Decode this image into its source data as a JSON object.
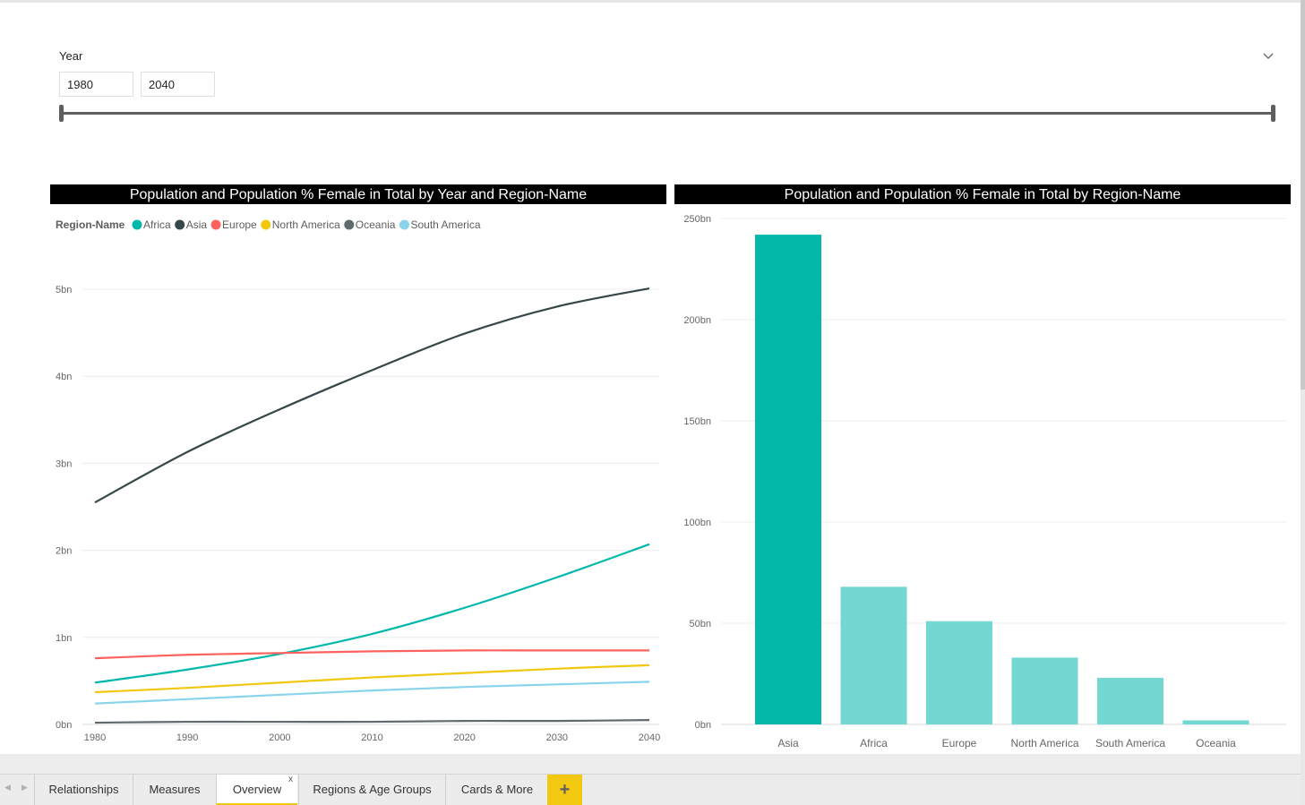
{
  "slicer": {
    "title": "Year",
    "start_value": "1980",
    "end_value": "2040"
  },
  "line_visual": {
    "title": "Population and Population % Female in Total by Year and Region-Name",
    "legend_title": "Region-Name"
  },
  "bar_visual": {
    "title": "Population and Population % Female in Total by Region-Name"
  },
  "tabs": {
    "relationships": "Relationships",
    "measures": "Measures",
    "overview": "Overview",
    "overview_close": "x",
    "regions": "Regions & Age Groups",
    "cards": "Cards & More",
    "add": "+"
  },
  "icons": {
    "chevron": "chevron-down-icon",
    "prev": "scroll-left-icon",
    "next": "scroll-right-icon"
  },
  "chart_data": [
    {
      "type": "line",
      "title": "Population and Population % Female in Total by Year and Region-Name",
      "legend_title": "Region-Name",
      "legend_position": "top-left",
      "x": [
        1980,
        1990,
        2000,
        2010,
        2020,
        2030,
        2040
      ],
      "x_ticks": [
        "1980",
        "1990",
        "2000",
        "2010",
        "2020",
        "2030",
        "2040"
      ],
      "y_ticks": [
        "0bn",
        "1bn",
        "2bn",
        "3bn",
        "4bn",
        "5bn"
      ],
      "ylim": [
        0,
        5.0
      ],
      "grid": true,
      "series": [
        {
          "name": "Africa",
          "color": "#01b8aa",
          "values": [
            0.48,
            0.63,
            0.81,
            1.04,
            1.34,
            1.69,
            2.07
          ]
        },
        {
          "name": "Asia",
          "color": "#374649",
          "values": [
            2.55,
            3.13,
            3.62,
            4.07,
            4.49,
            4.8,
            5.01
          ]
        },
        {
          "name": "Europe",
          "color": "#fd625e",
          "values": [
            0.76,
            0.8,
            0.82,
            0.84,
            0.85,
            0.85,
            0.85
          ]
        },
        {
          "name": "North America",
          "color": "#f2c80f",
          "values": [
            0.37,
            0.42,
            0.48,
            0.54,
            0.59,
            0.64,
            0.68
          ]
        },
        {
          "name": "Oceania",
          "color": "#5f6b6d",
          "values": [
            0.02,
            0.03,
            0.03,
            0.03,
            0.04,
            0.04,
            0.05
          ]
        },
        {
          "name": "South America",
          "color": "#8ad4eb",
          "values": [
            0.24,
            0.29,
            0.34,
            0.39,
            0.43,
            0.46,
            0.49
          ]
        }
      ]
    },
    {
      "type": "bar",
      "title": "Population and Population % Female in Total by Region-Name",
      "categories": [
        "Asia",
        "Africa",
        "Europe",
        "North America",
        "South America",
        "Oceania"
      ],
      "values": [
        242,
        68,
        51,
        33,
        23,
        2
      ],
      "y_ticks": [
        "0bn",
        "50bn",
        "100bn",
        "150bn",
        "200bn",
        "250bn"
      ],
      "ylim": [
        0,
        250
      ],
      "grid": true,
      "highlight_color": "#01b8aa",
      "bar_color": "#73d8d2"
    }
  ]
}
